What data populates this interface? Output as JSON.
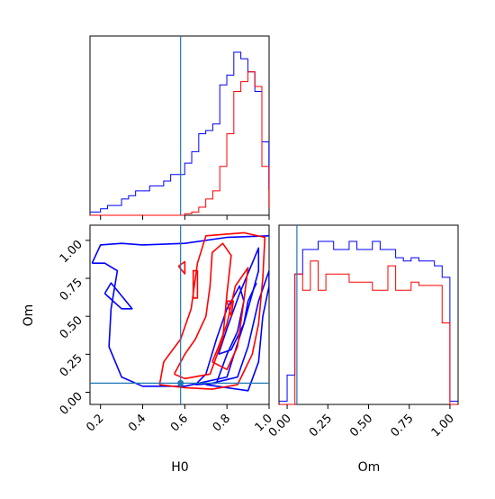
{
  "chart_data": {
    "type": "corner",
    "parameters": [
      "H0",
      "Om"
    ],
    "truth": {
      "H0": 0.58,
      "Om": 0.06
    },
    "colors": {
      "blue": "#0000ff",
      "red": "#ff0000",
      "truth": "#1f77b4"
    },
    "tick_labels": {
      "H0": [
        "0.2",
        "0.4",
        "0.6",
        "0.8",
        "1.0"
      ],
      "Om": [
        "0.00",
        "0.25",
        "0.50",
        "0.75",
        "1.00"
      ]
    },
    "xlim_H0": [
      0.15,
      1.0
    ],
    "xlim_Om": [
      -0.05,
      1.05
    ],
    "hist_H0": {
      "bin_width": 0.0333,
      "bin_start": 0.1333,
      "blue": [
        0.02,
        0.02,
        0.04,
        0.06,
        0.06,
        0.1,
        0.12,
        0.15,
        0.15,
        0.18,
        0.18,
        0.21,
        0.25,
        0.25,
        0.32,
        0.39,
        0.5,
        0.52,
        0.56,
        0.8,
        0.86,
        1.0,
        0.96,
        0.88,
        0.76,
        0.45,
        0.16
      ],
      "red": [
        0,
        0,
        0,
        0,
        0,
        0,
        0,
        0,
        0,
        0,
        0,
        0,
        0,
        0,
        0.01,
        0.02,
        0.05,
        0.1,
        0.15,
        0.3,
        0.5,
        0.76,
        0.82,
        0.88,
        0.79,
        0.3,
        0.05
      ]
    },
    "hist_Om": {
      "bin_width": 0.0476,
      "bin_start": -0.0476,
      "blue": [
        0.02,
        0.18,
        0.8,
        0.95,
        0.95,
        1.0,
        1.0,
        0.95,
        0.95,
        1.0,
        0.95,
        0.95,
        1.0,
        0.95,
        0.95,
        0.9,
        0.88,
        0.9,
        0.88,
        0.88,
        0.85,
        0.78,
        0.02
      ],
      "red": [
        0.0,
        0.0,
        0.8,
        0.7,
        0.88,
        0.7,
        0.8,
        0.8,
        0.8,
        0.75,
        0.75,
        0.75,
        0.7,
        0.7,
        0.85,
        0.7,
        0.7,
        0.75,
        0.73,
        0.73,
        0.73,
        0.5,
        0.0
      ]
    },
    "contours": {
      "blue": [
        [
          [
            0.16,
            0.85
          ],
          [
            0.2,
            0.97
          ],
          [
            0.3,
            0.98
          ],
          [
            0.4,
            0.97
          ],
          [
            0.6,
            0.98
          ],
          [
            0.8,
            1.02
          ],
          [
            1.0,
            1.03
          ]
        ],
        [
          [
            0.94,
            0.72
          ],
          [
            0.9,
            0.6
          ],
          [
            0.88,
            0.45
          ],
          [
            0.85,
            0.32
          ],
          [
            0.8,
            0.1
          ],
          [
            0.6,
            0.04
          ],
          [
            0.4,
            0.04
          ],
          [
            0.3,
            0.1
          ],
          [
            0.24,
            0.3
          ],
          [
            0.25,
            0.55
          ],
          [
            0.28,
            0.8
          ],
          [
            0.22,
            0.85
          ],
          [
            0.16,
            0.85
          ]
        ],
        [
          [
            0.22,
            0.65
          ],
          [
            0.3,
            0.55
          ],
          [
            0.35,
            0.55
          ],
          [
            0.25,
            0.72
          ],
          [
            0.22,
            0.65
          ]
        ],
        [
          [
            0.65,
            0.05
          ],
          [
            0.75,
            0.06
          ],
          [
            0.8,
            0.25
          ],
          [
            0.85,
            0.4
          ],
          [
            0.88,
            0.6
          ],
          [
            0.86,
            0.7
          ],
          [
            0.8,
            0.55
          ],
          [
            0.75,
            0.35
          ],
          [
            0.7,
            0.12
          ],
          [
            0.65,
            0.05
          ]
        ],
        [
          [
            0.76,
            0.25
          ],
          [
            0.82,
            0.28
          ],
          [
            0.88,
            0.45
          ],
          [
            0.92,
            0.65
          ],
          [
            0.95,
            0.8
          ],
          [
            0.95,
            0.95
          ],
          [
            0.92,
            0.85
          ],
          [
            0.86,
            0.65
          ],
          [
            0.8,
            0.42
          ],
          [
            0.76,
            0.25
          ]
        ],
        [
          [
            0.7,
            0.05
          ],
          [
            0.9,
            0.01
          ],
          [
            0.95,
            0.2
          ],
          [
            0.97,
            0.5
          ],
          [
            1.0,
            0.7
          ],
          [
            1.0,
            0.8
          ],
          [
            0.95,
            0.6
          ],
          [
            0.9,
            0.3
          ],
          [
            0.85,
            0.1
          ],
          [
            0.7,
            0.05
          ]
        ]
      ],
      "red": [
        [
          [
            0.48,
            0.05
          ],
          [
            0.6,
            0.03
          ],
          [
            0.73,
            0.02
          ],
          [
            0.85,
            0.05
          ],
          [
            0.92,
            0.25
          ],
          [
            0.95,
            0.45
          ],
          [
            0.97,
            0.75
          ],
          [
            0.98,
            1.02
          ],
          [
            0.88,
            1.05
          ],
          [
            0.7,
            1.03
          ],
          [
            0.66,
            0.85
          ],
          [
            0.63,
            0.55
          ],
          [
            0.58,
            0.35
          ],
          [
            0.5,
            0.2
          ],
          [
            0.48,
            0.05
          ]
        ],
        [
          [
            0.55,
            0.12
          ],
          [
            0.6,
            0.09
          ],
          [
            0.72,
            0.12
          ],
          [
            0.78,
            0.35
          ],
          [
            0.8,
            0.65
          ],
          [
            0.82,
            0.9
          ],
          [
            0.78,
            0.98
          ],
          [
            0.73,
            0.92
          ],
          [
            0.72,
            0.7
          ],
          [
            0.7,
            0.5
          ],
          [
            0.65,
            0.35
          ],
          [
            0.6,
            0.25
          ],
          [
            0.55,
            0.12
          ]
        ],
        [
          [
            0.73,
            0.2
          ],
          [
            0.8,
            0.15
          ],
          [
            0.85,
            0.3
          ],
          [
            0.88,
            0.6
          ],
          [
            0.9,
            0.82
          ],
          [
            0.84,
            0.7
          ],
          [
            0.8,
            0.45
          ],
          [
            0.76,
            0.3
          ],
          [
            0.73,
            0.2
          ]
        ],
        [
          [
            0.64,
            0.62
          ],
          [
            0.66,
            0.62
          ],
          [
            0.66,
            0.8
          ],
          [
            0.64,
            0.8
          ],
          [
            0.64,
            0.62
          ]
        ],
        [
          [
            0.57,
            0.83
          ],
          [
            0.6,
            0.78
          ],
          [
            0.6,
            0.86
          ],
          [
            0.57,
            0.83
          ]
        ],
        [
          [
            0.8,
            0.6
          ],
          [
            0.82,
            0.5
          ],
          [
            0.83,
            0.6
          ],
          [
            0.8,
            0.6
          ]
        ]
      ]
    }
  }
}
